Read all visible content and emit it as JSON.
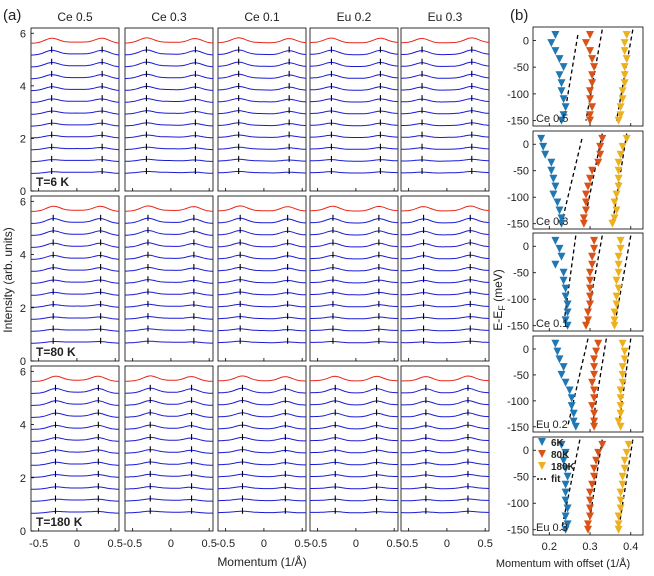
{
  "panel_a": {
    "label": "(a)",
    "columns": [
      "Ce 0.5",
      "Ce 0.3",
      "Ce 0.1",
      "Eu 0.2",
      "Eu 0.3"
    ],
    "rows": [
      "T=6 K",
      "T=80 K",
      "T=180 K"
    ],
    "ylabel": "Intensity (arb. units)",
    "xlabel": "Momentum (1/Å)",
    "x_ticks": [
      "-0.5",
      "0",
      "0.5"
    ],
    "y_ticks": [
      "0",
      "2",
      "4",
      "6"
    ]
  },
  "panel_b": {
    "label": "(b)",
    "ylabel": "E-E",
    "ylabel_sub": "F",
    "ylabel_unit": " (meV)",
    "xlabel": "Momentum with offset (1/Å)",
    "x_ticks": [
      "0.2",
      "0.3",
      "0.4"
    ],
    "y_ticks": [
      "0",
      "-50",
      "-100",
      "-150"
    ],
    "panels": [
      "Ce 0.5",
      "Ce 0.3",
      "Ce 0.1",
      "Eu 0.2",
      "Eu 0.3"
    ],
    "legend": [
      {
        "label": "6K",
        "color": "#1f77b4"
      },
      {
        "label": "80K",
        "color": "#d95319"
      },
      {
        "label": "180K",
        "color": "#edb120"
      },
      {
        "label": "fit",
        "color": "#000000"
      }
    ]
  },
  "chart_data": [
    {
      "type": "line",
      "description_free": true,
      "title": "",
      "xlabel": "Momentum (1/Å)",
      "ylabel": "Intensity (arb. units)",
      "xlim": [
        -0.6,
        0.55
      ],
      "ylim": [
        0,
        6.2
      ],
      "grid": false,
      "curve_count_per_panel": 12,
      "curve_offset_step": 0.45,
      "highlight_curve_color": "#e8261b",
      "curve_color": "#1a1ad6",
      "peak_k_by_row": [
        [
          0.32,
          0.3
        ],
        [
          0.3,
          0.3
        ],
        [
          0.27,
          0.25
        ]
      ]
    },
    {
      "type": "scatter",
      "xlabel": "Momentum with offset (1/Å)",
      "ylabel": "E-E_F (meV)",
      "xlim": [
        0.16,
        0.43
      ],
      "ylim": [
        -160,
        25
      ],
      "series": [
        {
          "name": "6K",
          "color": "#1f77b4"
        },
        {
          "name": "80K",
          "color": "#d95319"
        },
        {
          "name": "180K",
          "color": "#edb120"
        },
        {
          "name": "fit",
          "color": "#000000"
        }
      ],
      "energy": [
        10,
        -5,
        -20,
        -35,
        -50,
        -65,
        -80,
        -95,
        -110,
        -125,
        -140,
        -150
      ],
      "panels": [
        {
          "name": "Ce 0.5",
          "k_6K": [
            0.215,
            0.205,
            0.215,
            0.225,
            0.235,
            0.225,
            0.23,
            0.23,
            0.235,
            0.24,
            0.235,
            0.23
          ],
          "k_80K": [
            0.3,
            0.29,
            0.3,
            0.305,
            0.31,
            0.305,
            0.305,
            0.3,
            0.3,
            0.305,
            0.3,
            0.3
          ],
          "k_180K": [
            0.39,
            0.385,
            0.385,
            0.39,
            0.385,
            0.385,
            0.385,
            0.38,
            0.38,
            0.375,
            0.375,
            0.37
          ],
          "fit_6K": [
            [
              0.27,
              10
            ],
            [
              0.235,
              -150
            ]
          ],
          "fit_80K": [
            [
              0.33,
              20
            ],
            [
              0.29,
              -150
            ]
          ],
          "fit_180K": [
            [
              0.405,
              20
            ],
            [
              0.365,
              -150
            ]
          ]
        },
        {
          "name": "Ce 0.3",
          "k_6K": [
            0.18,
            0.185,
            0.19,
            0.205,
            0.205,
            0.21,
            0.215,
            0.21,
            0.22,
            0.225,
            0.23,
            0.23
          ],
          "k_80K": [
            0.33,
            0.325,
            0.325,
            0.32,
            0.305,
            0.3,
            0.295,
            0.29,
            0.29,
            0.29,
            0.285,
            0.285
          ],
          "k_180K": [
            0.39,
            0.38,
            0.375,
            0.37,
            0.37,
            0.37,
            0.37,
            0.365,
            0.36,
            0.365,
            0.36,
            0.355
          ],
          "fit_6K": [
            [
              0.28,
              10
            ],
            [
              0.23,
              -150
            ]
          ],
          "fit_80K": [
            [
              0.33,
              20
            ],
            [
              0.285,
              -150
            ]
          ],
          "fit_180K": [
            [
              0.39,
              20
            ],
            [
              0.355,
              -150
            ]
          ]
        },
        {
          "name": "Ce 0.1",
          "k_6K": [
            0.215,
            0.225,
            0.23,
            0.215,
            0.235,
            0.235,
            0.24,
            0.24,
            0.245,
            0.245,
            0.24,
            0.245
          ],
          "k_80K": [
            0.31,
            0.31,
            0.305,
            0.305,
            0.3,
            0.3,
            0.3,
            0.3,
            0.3,
            0.295,
            0.295,
            0.29
          ],
          "k_180K": [
            0.375,
            0.375,
            0.37,
            0.37,
            0.37,
            0.365,
            0.37,
            0.365,
            0.365,
            0.36,
            0.36,
            0.36
          ],
          "fit_6K": [
            [
              0.265,
              20
            ],
            [
              0.235,
              -150
            ]
          ],
          "fit_80K": [
            [
              0.33,
              20
            ],
            [
              0.29,
              -150
            ]
          ],
          "fit_180K": [
            [
              0.4,
              20
            ],
            [
              0.36,
              -150
            ]
          ]
        },
        {
          "name": "Eu 0.2",
          "k_6K": [
            0.215,
            0.22,
            0.225,
            0.235,
            0.23,
            0.24,
            0.25,
            0.255,
            0.255,
            0.26,
            0.26,
            0.265
          ],
          "k_80K": [
            0.32,
            0.315,
            0.31,
            0.31,
            0.31,
            0.305,
            0.31,
            0.31,
            0.305,
            0.31,
            0.31,
            0.31
          ],
          "k_180K": [
            0.38,
            0.385,
            0.385,
            0.38,
            0.38,
            0.38,
            0.375,
            0.375,
            0.375,
            0.375,
            0.37,
            0.375
          ],
          "fit_6K": [
            [
              0.295,
              20
            ],
            [
              0.245,
              -150
            ]
          ],
          "fit_80K": [
            [
              0.34,
              20
            ],
            [
              0.305,
              -150
            ]
          ],
          "fit_180K": [
            [
              0.4,
              20
            ],
            [
              0.37,
              -150
            ]
          ]
        },
        {
          "name": "Eu 0.3",
          "k_6K": [
            0.23,
            0.24,
            0.235,
            0.24,
            0.245,
            0.24,
            0.24,
            0.24,
            0.245,
            0.24,
            0.245,
            0.24
          ],
          "k_80K": [
            0.33,
            0.32,
            0.315,
            0.31,
            0.31,
            0.305,
            0.3,
            0.3,
            0.3,
            0.3,
            0.295,
            0.295
          ],
          "k_180K": [
            0.395,
            0.39,
            0.385,
            0.385,
            0.38,
            0.38,
            0.375,
            0.375,
            0.375,
            0.37,
            0.37,
            0.37
          ],
          "fit_6K": [
            [
              0.275,
              20
            ],
            [
              0.23,
              -150
            ]
          ],
          "fit_80K": [
            [
              0.33,
              20
            ],
            [
              0.295,
              -150
            ]
          ],
          "fit_180K": [
            [
              0.405,
              20
            ],
            [
              0.37,
              -150
            ]
          ]
        }
      ]
    }
  ]
}
